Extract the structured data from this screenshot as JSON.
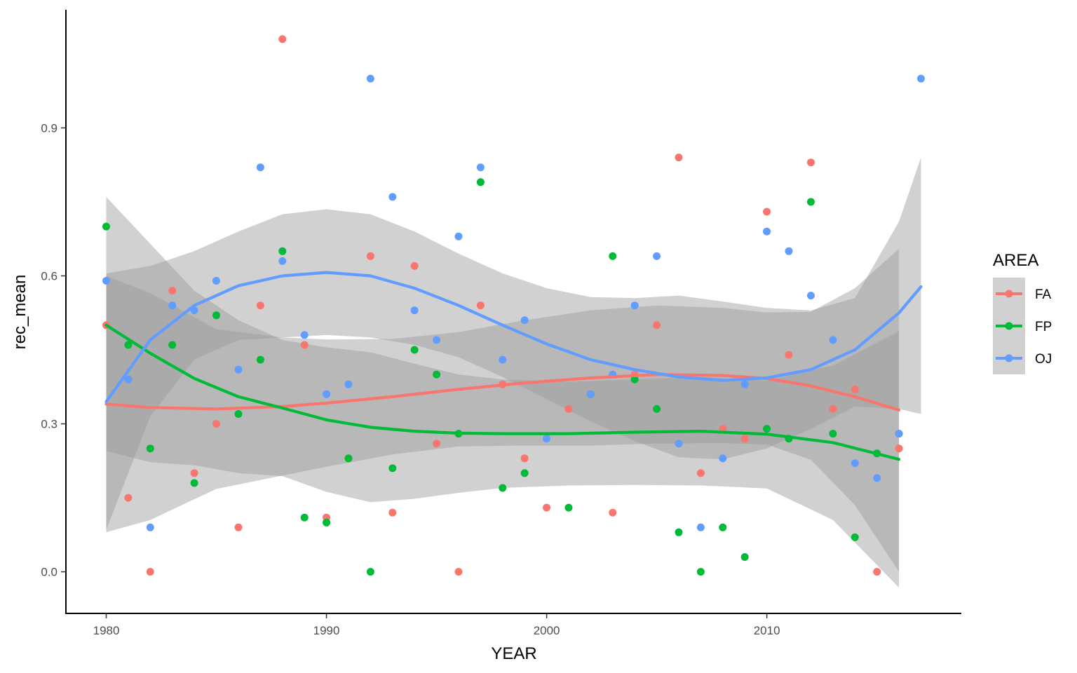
{
  "chart_data": {
    "type": "scatter",
    "title": "",
    "xlabel": "YEAR",
    "ylabel": "rec_mean",
    "xlim": [
      1978.2,
      2018.8
    ],
    "ylim": [
      -0.083,
      1.138
    ],
    "x_ticks": [
      1980,
      1990,
      2000,
      2010
    ],
    "y_ticks": [
      0.0,
      0.3,
      0.6,
      0.9
    ],
    "y_tick_labels": [
      "0.0",
      "0.3",
      "0.6",
      "0.9"
    ],
    "grid": false,
    "legend": {
      "title": "AREA",
      "position": "right"
    },
    "series": [
      {
        "name": "FA",
        "color": "#F8766D",
        "points": [
          [
            1980,
            0.5
          ],
          [
            1981,
            0.15
          ],
          [
            1982,
            0.0
          ],
          [
            1983,
            0.57
          ],
          [
            1984,
            0.2
          ],
          [
            1985,
            0.3
          ],
          [
            1986,
            0.09
          ],
          [
            1987,
            0.54
          ],
          [
            1988,
            1.08
          ],
          [
            1989,
            0.46
          ],
          [
            1990,
            0.11
          ],
          [
            1991,
            0.23
          ],
          [
            1992,
            0.64
          ],
          [
            1993,
            0.12
          ],
          [
            1994,
            0.62
          ],
          [
            1995,
            0.26
          ],
          [
            1996,
            0.0
          ],
          [
            1997,
            0.54
          ],
          [
            1998,
            0.38
          ],
          [
            1999,
            0.23
          ],
          [
            2000,
            0.13
          ],
          [
            2001,
            0.33
          ],
          [
            2002,
            0.36
          ],
          [
            2003,
            0.12
          ],
          [
            2004,
            0.4
          ],
          [
            2005,
            0.5
          ],
          [
            2006,
            0.84
          ],
          [
            2007,
            0.2
          ],
          [
            2008,
            0.29
          ],
          [
            2009,
            0.27
          ],
          [
            2010,
            0.73
          ],
          [
            2011,
            0.44
          ],
          [
            2012,
            0.83
          ],
          [
            2013,
            0.33
          ],
          [
            2014,
            0.37
          ],
          [
            2015,
            0.0
          ],
          [
            2016,
            0.25
          ]
        ],
        "smooth": [
          [
            1980,
            0.34
          ],
          [
            1982,
            0.333
          ],
          [
            1985,
            0.33
          ],
          [
            1988,
            0.335
          ],
          [
            1990,
            0.342
          ],
          [
            1993,
            0.355
          ],
          [
            1996,
            0.37
          ],
          [
            1999,
            0.383
          ],
          [
            2002,
            0.393
          ],
          [
            2005,
            0.4
          ],
          [
            2008,
            0.398
          ],
          [
            2010,
            0.392
          ],
          [
            2012,
            0.377
          ],
          [
            2014,
            0.355
          ],
          [
            2016,
            0.328
          ]
        ],
        "band_upper": [
          [
            1980,
            0.6
          ],
          [
            1982,
            0.565
          ],
          [
            1985,
            0.492
          ],
          [
            1988,
            0.475
          ],
          [
            1990,
            0.471
          ],
          [
            1993,
            0.472
          ],
          [
            1996,
            0.486
          ],
          [
            1999,
            0.51
          ],
          [
            2002,
            0.53
          ],
          [
            2005,
            0.54
          ],
          [
            2008,
            0.535
          ],
          [
            2010,
            0.526
          ],
          [
            2012,
            0.527
          ],
          [
            2014,
            0.575
          ],
          [
            2016,
            0.655
          ]
        ],
        "band_lower": [
          [
            1980,
            0.08
          ],
          [
            1982,
            0.105
          ],
          [
            1985,
            0.168
          ],
          [
            1988,
            0.195
          ],
          [
            1990,
            0.213
          ],
          [
            1993,
            0.238
          ],
          [
            1996,
            0.254
          ],
          [
            1999,
            0.256
          ],
          [
            2002,
            0.256
          ],
          [
            2005,
            0.26
          ],
          [
            2008,
            0.261
          ],
          [
            2010,
            0.258
          ],
          [
            2012,
            0.227
          ],
          [
            2014,
            0.135
          ],
          [
            2016,
            0.0
          ]
        ]
      },
      {
        "name": "FP",
        "color": "#00BA38",
        "points": [
          [
            1980,
            0.7
          ],
          [
            1981,
            0.46
          ],
          [
            1982,
            0.25
          ],
          [
            1983,
            0.46
          ],
          [
            1984,
            0.18
          ],
          [
            1985,
            0.52
          ],
          [
            1986,
            0.32
          ],
          [
            1987,
            0.43
          ],
          [
            1988,
            0.65
          ],
          [
            1989,
            0.11
          ],
          [
            1990,
            0.1
          ],
          [
            1991,
            0.23
          ],
          [
            1992,
            0.0
          ],
          [
            1993,
            0.21
          ],
          [
            1994,
            0.45
          ],
          [
            1995,
            0.4
          ],
          [
            1996,
            0.28
          ],
          [
            1997,
            0.79
          ],
          [
            1998,
            0.17
          ],
          [
            1999,
            0.2
          ],
          [
            2001,
            0.13
          ],
          [
            2002,
            0.36
          ],
          [
            2003,
            0.64
          ],
          [
            2004,
            0.39
          ],
          [
            2005,
            0.33
          ],
          [
            2006,
            0.08
          ],
          [
            2007,
            0.0
          ],
          [
            2008,
            0.09
          ],
          [
            2009,
            0.03
          ],
          [
            2010,
            0.29
          ],
          [
            2011,
            0.27
          ],
          [
            2012,
            0.75
          ],
          [
            2013,
            0.28
          ],
          [
            2014,
            0.07
          ],
          [
            2015,
            0.24
          ],
          [
            2016,
            0.28
          ]
        ],
        "smooth": [
          [
            1980,
            0.5
          ],
          [
            1982,
            0.443
          ],
          [
            1984,
            0.392
          ],
          [
            1986,
            0.355
          ],
          [
            1988,
            0.332
          ],
          [
            1990,
            0.308
          ],
          [
            1992,
            0.293
          ],
          [
            1994,
            0.285
          ],
          [
            1996,
            0.281
          ],
          [
            1998,
            0.28
          ],
          [
            2001,
            0.28
          ],
          [
            2004,
            0.283
          ],
          [
            2007,
            0.285
          ],
          [
            2010,
            0.279
          ],
          [
            2013,
            0.262
          ],
          [
            2016,
            0.228
          ]
        ],
        "band_upper": [
          [
            1980,
            0.76
          ],
          [
            1982,
            0.665
          ],
          [
            1984,
            0.57
          ],
          [
            1986,
            0.51
          ],
          [
            1988,
            0.47
          ],
          [
            1990,
            0.455
          ],
          [
            1992,
            0.445
          ],
          [
            1994,
            0.422
          ],
          [
            1996,
            0.4
          ],
          [
            1998,
            0.39
          ],
          [
            2001,
            0.385
          ],
          [
            2004,
            0.39
          ],
          [
            2007,
            0.395
          ],
          [
            2010,
            0.388
          ],
          [
            2013,
            0.418
          ],
          [
            2016,
            0.488
          ]
        ],
        "band_lower": [
          [
            1980,
            0.245
          ],
          [
            1982,
            0.222
          ],
          [
            1984,
            0.216
          ],
          [
            1986,
            0.2
          ],
          [
            1988,
            0.194
          ],
          [
            1990,
            0.162
          ],
          [
            1992,
            0.141
          ],
          [
            1994,
            0.148
          ],
          [
            1996,
            0.16
          ],
          [
            1998,
            0.17
          ],
          [
            2001,
            0.175
          ],
          [
            2004,
            0.176
          ],
          [
            2007,
            0.175
          ],
          [
            2010,
            0.169
          ],
          [
            2013,
            0.105
          ],
          [
            2016,
            -0.032
          ]
        ]
      },
      {
        "name": "OJ",
        "color": "#619CFF",
        "points": [
          [
            1980,
            0.59
          ],
          [
            1981,
            0.39
          ],
          [
            1982,
            0.09
          ],
          [
            1983,
            0.54
          ],
          [
            1984,
            0.53
          ],
          [
            1985,
            0.59
          ],
          [
            1986,
            0.41
          ],
          [
            1987,
            0.82
          ],
          [
            1988,
            0.63
          ],
          [
            1989,
            0.48
          ],
          [
            1990,
            0.36
          ],
          [
            1991,
            0.38
          ],
          [
            1992,
            1.0
          ],
          [
            1993,
            0.76
          ],
          [
            1994,
            0.53
          ],
          [
            1995,
            0.47
          ],
          [
            1996,
            0.68
          ],
          [
            1997,
            0.82
          ],
          [
            1998,
            0.43
          ],
          [
            1999,
            0.51
          ],
          [
            2000,
            0.27
          ],
          [
            2002,
            0.36
          ],
          [
            2003,
            0.4
          ],
          [
            2004,
            0.54
          ],
          [
            2005,
            0.64
          ],
          [
            2006,
            0.26
          ],
          [
            2007,
            0.09
          ],
          [
            2008,
            0.23
          ],
          [
            2009,
            0.38
          ],
          [
            2010,
            0.69
          ],
          [
            2011,
            0.65
          ],
          [
            2012,
            0.56
          ],
          [
            2013,
            0.47
          ],
          [
            2014,
            0.22
          ],
          [
            2015,
            0.19
          ],
          [
            2016,
            0.28
          ],
          [
            2017,
            1.0
          ]
        ],
        "smooth": [
          [
            1980,
            0.345
          ],
          [
            1982,
            0.47
          ],
          [
            1984,
            0.54
          ],
          [
            1986,
            0.58
          ],
          [
            1988,
            0.6
          ],
          [
            1990,
            0.607
          ],
          [
            1992,
            0.6
          ],
          [
            1994,
            0.575
          ],
          [
            1996,
            0.54
          ],
          [
            1998,
            0.5
          ],
          [
            2000,
            0.462
          ],
          [
            2002,
            0.43
          ],
          [
            2004,
            0.41
          ],
          [
            2006,
            0.395
          ],
          [
            2008,
            0.388
          ],
          [
            2010,
            0.393
          ],
          [
            2012,
            0.41
          ],
          [
            2014,
            0.45
          ],
          [
            2016,
            0.525
          ],
          [
            2017,
            0.578
          ]
        ],
        "band_upper": [
          [
            1980,
            0.605
          ],
          [
            1982,
            0.62
          ],
          [
            1984,
            0.65
          ],
          [
            1986,
            0.69
          ],
          [
            1988,
            0.725
          ],
          [
            1990,
            0.735
          ],
          [
            1992,
            0.725
          ],
          [
            1994,
            0.69
          ],
          [
            1996,
            0.645
          ],
          [
            1998,
            0.605
          ],
          [
            2000,
            0.575
          ],
          [
            2002,
            0.557
          ],
          [
            2004,
            0.555
          ],
          [
            2006,
            0.56
          ],
          [
            2008,
            0.548
          ],
          [
            2010,
            0.535
          ],
          [
            2012,
            0.53
          ],
          [
            2014,
            0.555
          ],
          [
            2016,
            0.71
          ],
          [
            2017,
            0.84
          ]
        ],
        "band_lower": [
          [
            1980,
            0.085
          ],
          [
            1982,
            0.315
          ],
          [
            1984,
            0.43
          ],
          [
            1986,
            0.47
          ],
          [
            1988,
            0.475
          ],
          [
            1990,
            0.48
          ],
          [
            1992,
            0.475
          ],
          [
            1994,
            0.46
          ],
          [
            1996,
            0.435
          ],
          [
            1998,
            0.395
          ],
          [
            2000,
            0.35
          ],
          [
            2002,
            0.305
          ],
          [
            2004,
            0.265
          ],
          [
            2006,
            0.232
          ],
          [
            2008,
            0.228
          ],
          [
            2010,
            0.25
          ],
          [
            2012,
            0.29
          ],
          [
            2014,
            0.335
          ],
          [
            2016,
            0.33
          ],
          [
            2017,
            0.32
          ]
        ]
      }
    ]
  }
}
